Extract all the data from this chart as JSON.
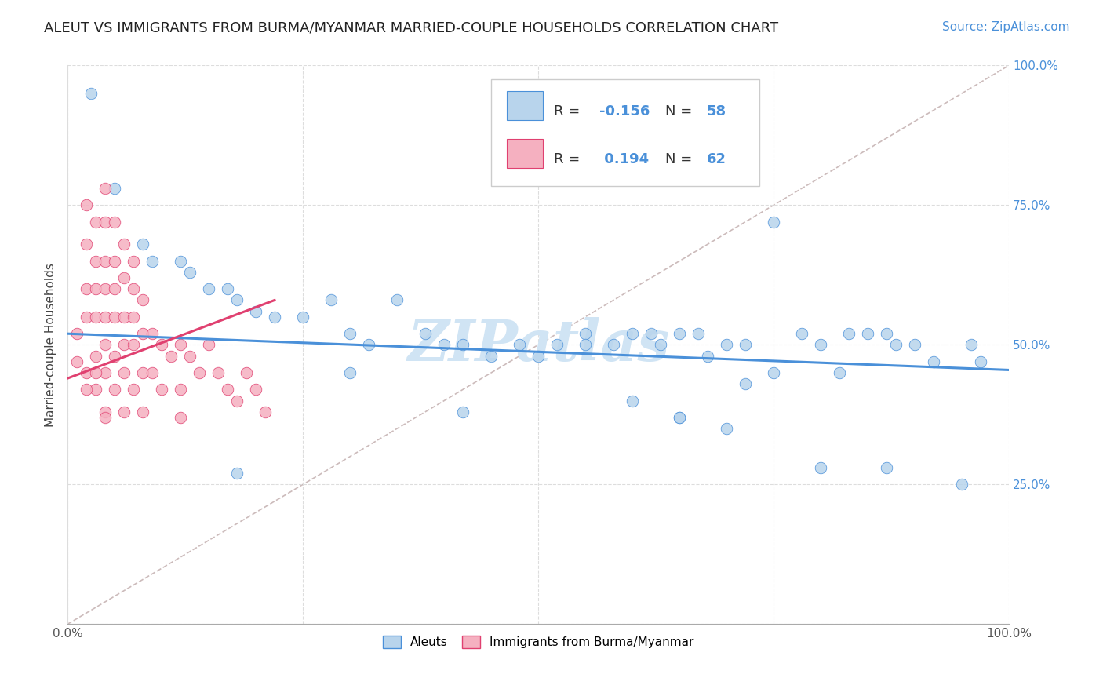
{
  "title": "ALEUT VS IMMIGRANTS FROM BURMA/MYANMAR MARRIED-COUPLE HOUSEHOLDS CORRELATION CHART",
  "source_text": "Source: ZipAtlas.com",
  "ylabel": "Married-couple Households",
  "xlim": [
    0,
    1
  ],
  "ylim": [
    0,
    1
  ],
  "xticks": [
    0.0,
    0.25,
    0.5,
    0.75,
    1.0
  ],
  "yticks": [
    0.0,
    0.25,
    0.5,
    0.75,
    1.0
  ],
  "xtick_labels": [
    "0.0%",
    "",
    "",
    "",
    "100.0%"
  ],
  "ytick_labels_right": [
    "",
    "25.0%",
    "50.0%",
    "75.0%",
    "100.0%"
  ],
  "series1_color": "#b8d4ec",
  "series2_color": "#f5b0c0",
  "line1_color": "#4a90d9",
  "line2_color": "#e04070",
  "ref_line_color": "#ccbbbb",
  "title_color": "#222222",
  "source_color": "#4a90d9",
  "watermark_text": "ZIPatlas",
  "watermark_color": "#d0e4f4",
  "background_color": "#ffffff",
  "grid_color": "#dddddd",
  "aleuts_x": [
    0.025,
    0.05,
    0.08,
    0.09,
    0.12,
    0.13,
    0.15,
    0.17,
    0.18,
    0.2,
    0.22,
    0.25,
    0.28,
    0.3,
    0.32,
    0.35,
    0.38,
    0.4,
    0.42,
    0.45,
    0.48,
    0.5,
    0.52,
    0.55,
    0.58,
    0.6,
    0.62,
    0.63,
    0.65,
    0.67,
    0.68,
    0.7,
    0.72,
    0.75,
    0.78,
    0.8,
    0.82,
    0.83,
    0.85,
    0.87,
    0.88,
    0.9,
    0.92,
    0.95,
    0.96,
    0.97,
    0.42,
    0.55,
    0.6,
    0.65,
    0.7,
    0.75,
    0.3,
    0.18,
    0.65,
    0.72,
    0.8,
    0.87
  ],
  "aleuts_y": [
    0.95,
    0.78,
    0.68,
    0.65,
    0.65,
    0.63,
    0.6,
    0.6,
    0.58,
    0.56,
    0.55,
    0.55,
    0.58,
    0.52,
    0.5,
    0.58,
    0.52,
    0.5,
    0.5,
    0.48,
    0.5,
    0.48,
    0.5,
    0.52,
    0.5,
    0.52,
    0.52,
    0.5,
    0.52,
    0.52,
    0.48,
    0.5,
    0.5,
    0.72,
    0.52,
    0.5,
    0.45,
    0.52,
    0.52,
    0.52,
    0.5,
    0.5,
    0.47,
    0.25,
    0.5,
    0.47,
    0.38,
    0.5,
    0.4,
    0.37,
    0.35,
    0.45,
    0.45,
    0.27,
    0.37,
    0.43,
    0.28,
    0.28
  ],
  "burma_x": [
    0.01,
    0.01,
    0.02,
    0.02,
    0.02,
    0.02,
    0.02,
    0.03,
    0.03,
    0.03,
    0.03,
    0.03,
    0.03,
    0.04,
    0.04,
    0.04,
    0.04,
    0.04,
    0.04,
    0.04,
    0.04,
    0.05,
    0.05,
    0.05,
    0.05,
    0.05,
    0.05,
    0.06,
    0.06,
    0.06,
    0.06,
    0.06,
    0.07,
    0.07,
    0.07,
    0.07,
    0.07,
    0.08,
    0.08,
    0.08,
    0.09,
    0.09,
    0.1,
    0.1,
    0.11,
    0.12,
    0.12,
    0.13,
    0.14,
    0.15,
    0.16,
    0.17,
    0.18,
    0.19,
    0.2,
    0.21,
    0.12,
    0.08,
    0.06,
    0.04,
    0.03,
    0.02
  ],
  "burma_y": [
    0.52,
    0.47,
    0.75,
    0.68,
    0.6,
    0.55,
    0.45,
    0.72,
    0.65,
    0.6,
    0.55,
    0.48,
    0.42,
    0.78,
    0.72,
    0.65,
    0.6,
    0.55,
    0.5,
    0.45,
    0.38,
    0.72,
    0.65,
    0.6,
    0.55,
    0.48,
    0.42,
    0.68,
    0.62,
    0.55,
    0.5,
    0.45,
    0.65,
    0.6,
    0.55,
    0.5,
    0.42,
    0.58,
    0.52,
    0.45,
    0.52,
    0.45,
    0.5,
    0.42,
    0.48,
    0.5,
    0.42,
    0.48,
    0.45,
    0.5,
    0.45,
    0.42,
    0.4,
    0.45,
    0.42,
    0.38,
    0.37,
    0.38,
    0.38,
    0.37,
    0.45,
    0.42
  ],
  "title_fontsize": 13,
  "axis_label_fontsize": 11,
  "tick_fontsize": 11,
  "legend_fontsize": 13,
  "source_fontsize": 11
}
